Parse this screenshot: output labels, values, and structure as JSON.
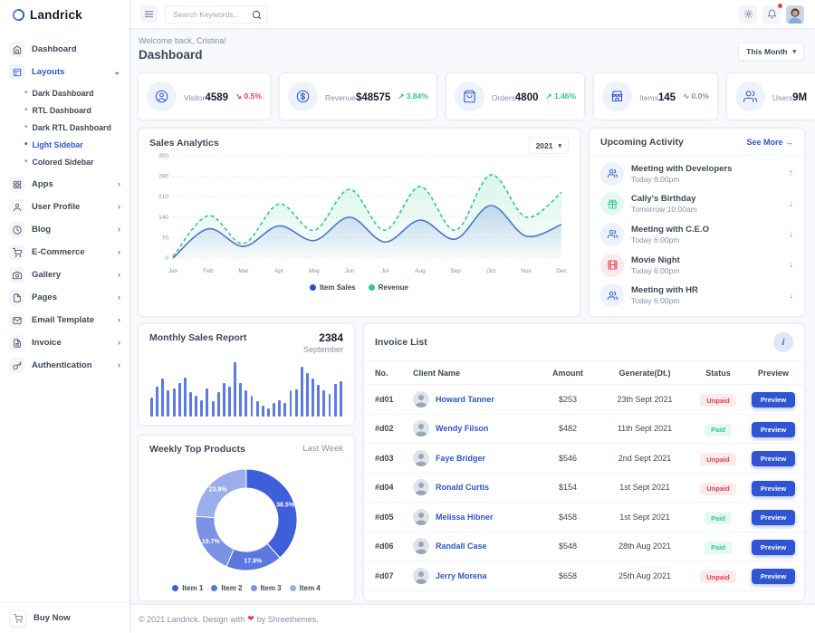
{
  "brand": {
    "name": "Landrick",
    "primary_color": "#2f55d4",
    "green": "#2eca8b",
    "red": "#e43f52",
    "orange": "#f17425"
  },
  "sidebar": {
    "items": [
      {
        "label": "Dashboard",
        "icon": "home",
        "active": false,
        "chevron": "none"
      },
      {
        "label": "Layouts",
        "icon": "layout",
        "active": true,
        "chevron": "down",
        "children": [
          "Dark Dashboard",
          "RTL Dashboard",
          "Dark RTL Dashboard",
          "Light Sidebar",
          "Colored Sidebar"
        ],
        "active_child": "Light Sidebar"
      },
      {
        "label": "Apps",
        "icon": "grid",
        "active": false,
        "chevron": "right"
      },
      {
        "label": "User Profile",
        "icon": "user",
        "active": false,
        "chevron": "right"
      },
      {
        "label": "Blog",
        "icon": "clock",
        "active": false,
        "chevron": "right"
      },
      {
        "label": "E-Commerce",
        "icon": "cart",
        "active": false,
        "chevron": "right"
      },
      {
        "label": "Gallery",
        "icon": "camera",
        "active": false,
        "chevron": "right"
      },
      {
        "label": "Pages",
        "icon": "file",
        "active": false,
        "chevron": "right"
      },
      {
        "label": "Email Template",
        "icon": "mail",
        "active": false,
        "chevron": "right"
      },
      {
        "label": "Invoice",
        "icon": "file-text",
        "active": false,
        "chevron": "right"
      },
      {
        "label": "Authentication",
        "icon": "key",
        "active": false,
        "chevron": "right"
      }
    ],
    "buy_now_label": "Buy Now"
  },
  "topbar": {
    "search_placeholder": "Search Keywords...",
    "search_value": ""
  },
  "page": {
    "welcome": "Welcome back, Cristina!",
    "title": "Dashboard",
    "period_label": "This Month"
  },
  "stats": [
    {
      "label": "Visitor",
      "value": "4589",
      "delta": "0.5%",
      "trend": "down",
      "icon": "user-circle"
    },
    {
      "label": "Revenue",
      "value": "$48575",
      "delta": "3.84%",
      "trend": "up",
      "icon": "dollar"
    },
    {
      "label": "Orders",
      "value": "4800",
      "delta": "1.46%",
      "trend": "up",
      "icon": "bag"
    },
    {
      "label": "Items",
      "value": "145",
      "delta": "0.0%",
      "trend": "flat",
      "icon": "store"
    },
    {
      "label": "Users",
      "value": "9M",
      "delta": "0.5%",
      "trend": "down",
      "icon": "users"
    }
  ],
  "sales_analytics": {
    "title": "Sales Analytics",
    "year": "2021"
  },
  "activity": {
    "title": "Upcoming Activity",
    "see_more": "See More",
    "items": [
      {
        "title": "Meeting with Developers",
        "time": "Today 6:00pm",
        "icon": "users",
        "color": "blue",
        "direction": "up"
      },
      {
        "title": "Cally's Birthday",
        "time": "Tomorrow 10:00am",
        "icon": "gift",
        "color": "green",
        "direction": "down"
      },
      {
        "title": "Meeting with C.E.O",
        "time": "Today 6:00pm",
        "icon": "users",
        "color": "blue",
        "direction": "down"
      },
      {
        "title": "Movie Night",
        "time": "Today 6:00pm",
        "icon": "film",
        "color": "red",
        "direction": "down"
      },
      {
        "title": "Meeting with HR",
        "time": "Today 6:00pm",
        "icon": "users",
        "color": "blue",
        "direction": "down"
      }
    ]
  },
  "monthly_report": {
    "title": "Monthly Sales Report",
    "value": "2384",
    "month": "September"
  },
  "weekly_products": {
    "title": "Weekly Top Products",
    "period": "Last Week"
  },
  "invoice_list": {
    "title": "Invoice List",
    "menu_glyph": "i",
    "columns": [
      "No.",
      "Client Name",
      "Amount",
      "Generate(Dt.)",
      "Status",
      "Preview"
    ],
    "preview_label": "Preview",
    "rows": [
      {
        "no": "#d01",
        "client": "Howard Tanner",
        "amount": "$253",
        "date": "23th Sept 2021",
        "status": "Unpaid"
      },
      {
        "no": "#d02",
        "client": "Wendy Filson",
        "amount": "$482",
        "date": "11th Sept 2021",
        "status": "Paid"
      },
      {
        "no": "#d03",
        "client": "Faye Bridger",
        "amount": "$546",
        "date": "2nd Sept 2021",
        "status": "Unpaid"
      },
      {
        "no": "#d04",
        "client": "Ronald Curtis",
        "amount": "$154",
        "date": "1st Sept 2021",
        "status": "Unpaid"
      },
      {
        "no": "#d05",
        "client": "Melissa Hibner",
        "amount": "$458",
        "date": "1st Sept 2021",
        "status": "Paid"
      },
      {
        "no": "#d06",
        "client": "Randall Case",
        "amount": "$548",
        "date": "28th Aug 2021",
        "status": "Paid"
      },
      {
        "no": "#d07",
        "client": "Jerry Morena",
        "amount": "$658",
        "date": "25th Aug 2021",
        "status": "Unpaid"
      }
    ]
  },
  "footer": {
    "pre": "© 2021 Landrick. Design with",
    "heart": "❤",
    "post": "by Shreethemes."
  },
  "chart_data": [
    {
      "type": "area",
      "title": "Sales Analytics",
      "x": [
        "Jan",
        "Feb",
        "Mar",
        "Apr",
        "May",
        "Jun",
        "Jul",
        "Aug",
        "Sep",
        "Oct",
        "Nov",
        "Dec"
      ],
      "series": [
        {
          "name": "Item Sales",
          "color": "#4d6ddb",
          "dashed": false,
          "values": [
            0,
            100,
            40,
            110,
            60,
            140,
            55,
            130,
            65,
            180,
            75,
            115
          ]
        },
        {
          "name": "Revenue",
          "color": "#2eca8b",
          "dashed": true,
          "values": [
            5,
            145,
            50,
            185,
            95,
            235,
            95,
            245,
            95,
            285,
            140,
            225
          ]
        }
      ],
      "ylim": [
        0,
        350
      ],
      "yticks": [
        0,
        70,
        140,
        210,
        280,
        350
      ],
      "grid": true,
      "legend_position": "bottom"
    },
    {
      "type": "bar",
      "title": "Monthly Sales Report",
      "total": 2384,
      "month": "September",
      "color": "#5b7be2",
      "values": [
        35,
        55,
        70,
        48,
        52,
        62,
        72,
        45,
        38,
        30,
        52,
        28,
        45,
        62,
        55,
        100,
        62,
        48,
        38,
        28,
        20,
        15,
        25,
        30,
        25,
        48,
        50,
        92,
        80,
        70,
        58,
        48,
        42,
        60,
        65
      ]
    },
    {
      "type": "pie",
      "title": "Weekly Top Products",
      "donut": true,
      "labels": [
        "Item 1",
        "Item 2",
        "Item 3",
        "Item 4"
      ],
      "values": [
        38.5,
        17.9,
        19.7,
        23.9
      ],
      "colors": [
        "#3d5fd9",
        "#5b78e0",
        "#7b92e7",
        "#9cadee"
      ],
      "legend_position": "bottom"
    }
  ]
}
